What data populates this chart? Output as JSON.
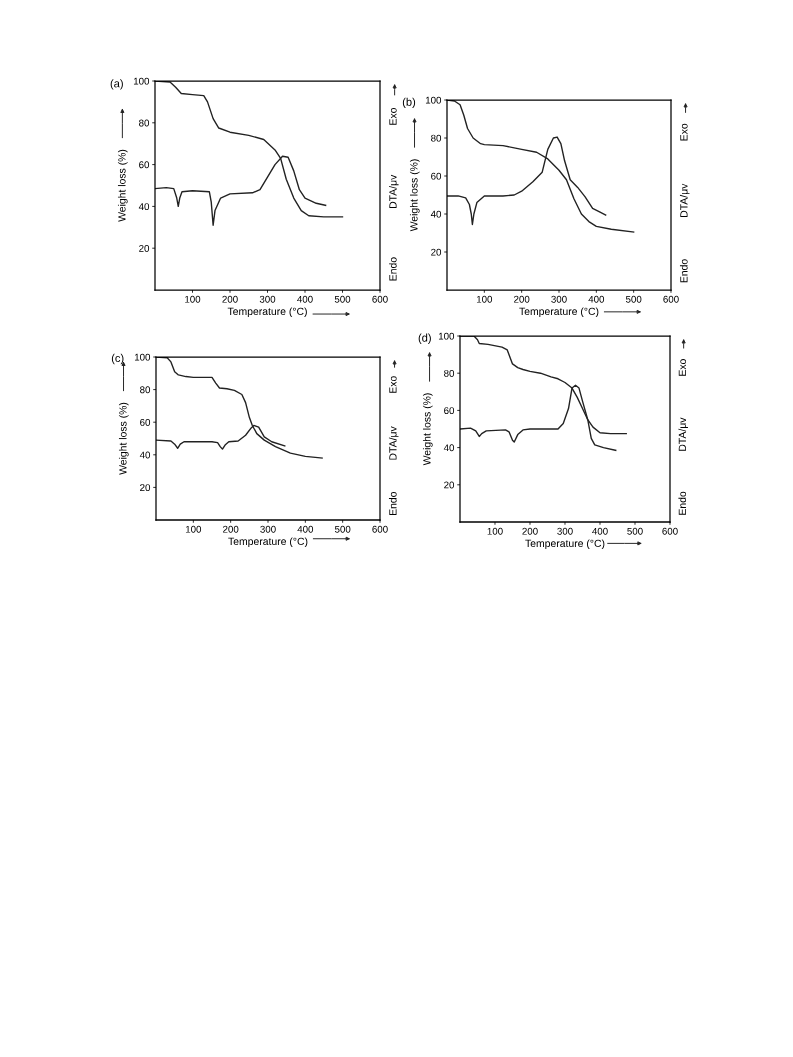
{
  "chart_data": [
    {
      "type": "line",
      "title": "(a)",
      "xlabel": "Temperature (°C)",
      "ylabel": "Weight loss (%)",
      "xlim": [
        0,
        600
      ],
      "ylim": [
        0,
        100
      ],
      "xticks": [
        100,
        200,
        300,
        400,
        500,
        600
      ],
      "yticks": [
        20,
        40,
        60,
        80,
        100
      ],
      "grid": false,
      "marker": "none",
      "line_style": "solid",
      "annotations": [
        "Exo",
        "DTA/μv",
        "Endo"
      ],
      "series": [
        {
          "color": "#222222",
          "x": [
            0,
            40,
            55,
            70,
            100,
            130,
            140,
            155,
            170,
            200,
            250,
            290,
            320,
            335,
            350,
            370,
            390,
            410,
            450,
            500
          ],
          "values": [
            100,
            99.5,
            97,
            94,
            93.5,
            93,
            90,
            82,
            77.5,
            75.5,
            74,
            72,
            67,
            63,
            53,
            44,
            38,
            35.5,
            35,
            35
          ]
        },
        {
          "color": "#222222",
          "x": [
            0,
            30,
            50,
            58,
            62,
            66,
            72,
            100,
            145,
            150,
            155,
            160,
            175,
            200,
            260,
            280,
            300,
            320,
            340,
            355,
            370,
            385,
            400,
            430,
            455
          ],
          "values": [
            48.5,
            49,
            48.5,
            44,
            40,
            44,
            47,
            47.5,
            47,
            42,
            31,
            38,
            44,
            46,
            46.5,
            48,
            54,
            60,
            64,
            63.5,
            57,
            48,
            44,
            41.5,
            40.5
          ]
        }
      ]
    },
    {
      "type": "line",
      "title": "(b)",
      "xlabel": "Temperature (°C)",
      "ylabel": "Weight loss (%)",
      "xlim": [
        0,
        600
      ],
      "ylim": [
        0,
        100
      ],
      "xticks": [
        100,
        200,
        300,
        400,
        500,
        600
      ],
      "yticks": [
        20,
        40,
        60,
        80,
        100
      ],
      "grid": false,
      "marker": "none",
      "line_style": "solid",
      "annotations": [
        "Exo",
        "DTA/μv",
        "Endo"
      ],
      "series": [
        {
          "color": "#222222",
          "x": [
            0,
            20,
            35,
            45,
            55,
            70,
            90,
            100,
            150,
            200,
            240,
            270,
            300,
            320,
            340,
            360,
            380,
            400,
            440,
            500
          ],
          "values": [
            100,
            99.5,
            97.5,
            92,
            85,
            80,
            77,
            76.5,
            76,
            74,
            72.5,
            69,
            63,
            58,
            48,
            40,
            36,
            33.5,
            32,
            30.5
          ]
        },
        {
          "color": "#222222",
          "x": [
            0,
            30,
            50,
            60,
            65,
            68,
            72,
            80,
            100,
            150,
            180,
            200,
            230,
            255,
            270,
            285,
            295,
            305,
            315,
            330,
            350,
            370,
            390,
            410,
            425
          ],
          "values": [
            49.5,
            49.5,
            48.5,
            45,
            40,
            34.5,
            40,
            46,
            49.5,
            49.5,
            50,
            52,
            57,
            62,
            74,
            80,
            80.5,
            77,
            68,
            58,
            54,
            49,
            43,
            41,
            39.5
          ]
        }
      ]
    },
    {
      "type": "line",
      "title": "(c)",
      "xlabel": "Temperature (°C)",
      "ylabel": "Weight loss (%)",
      "xlim": [
        0,
        600
      ],
      "ylim": [
        0,
        100
      ],
      "xticks": [
        100,
        200,
        300,
        400,
        500,
        600
      ],
      "yticks": [
        20,
        40,
        60,
        80,
        100
      ],
      "grid": false,
      "marker": "none",
      "line_style": "solid",
      "annotations": [
        "Exo",
        "DTA/μv",
        "Endo"
      ],
      "series": [
        {
          "color": "#222222",
          "x": [
            0,
            30,
            40,
            50,
            60,
            80,
            100,
            150,
            160,
            170,
            190,
            210,
            230,
            240,
            250,
            258,
            270,
            290,
            320,
            360,
            400,
            445
          ],
          "values": [
            100,
            99.5,
            97,
            91,
            89,
            88,
            87.5,
            87.5,
            84,
            81,
            80.5,
            79.5,
            77,
            72,
            63,
            58,
            53,
            49,
            45,
            41,
            39,
            38
          ]
        },
        {
          "color": "#222222",
          "x": [
            0,
            40,
            50,
            58,
            65,
            75,
            150,
            165,
            172,
            178,
            185,
            195,
            220,
            240,
            255,
            262,
            275,
            290,
            310,
            345
          ],
          "values": [
            49,
            48.5,
            46.5,
            44,
            46.5,
            48,
            48,
            47.5,
            45,
            43.5,
            46,
            48,
            48.5,
            52,
            56.5,
            58,
            57,
            51,
            48,
            45.5
          ]
        }
      ]
    },
    {
      "type": "line",
      "title": "(d)",
      "xlabel": "Temperature (°C)",
      "ylabel": "Weight loss (%)",
      "xlim": [
        0,
        600
      ],
      "ylim": [
        0,
        100
      ],
      "xticks": [
        100,
        200,
        300,
        400,
        500,
        600
      ],
      "yticks": [
        20,
        40,
        60,
        80,
        100
      ],
      "grid": false,
      "marker": "none",
      "line_style": "solid",
      "annotations": [
        "Exo",
        "DTA/μv",
        "Endo"
      ],
      "series": [
        {
          "color": "#222222",
          "x": [
            0,
            40,
            50,
            55,
            80,
            120,
            135,
            150,
            165,
            180,
            200,
            230,
            260,
            280,
            300,
            320,
            335,
            350,
            365,
            380,
            400,
            430,
            475
          ],
          "values": [
            100,
            100,
            98,
            96,
            95.5,
            94,
            92.5,
            85,
            83,
            82,
            81,
            80,
            78,
            77,
            75,
            72,
            67,
            61,
            55,
            51,
            48,
            47.5,
            47.5
          ]
        },
        {
          "color": "#222222",
          "x": [
            0,
            30,
            45,
            55,
            62,
            75,
            130,
            140,
            150,
            155,
            165,
            180,
            200,
            280,
            295,
            310,
            320,
            330,
            340,
            350,
            365,
            375,
            385,
            410,
            445
          ],
          "values": [
            50,
            50.5,
            49,
            46,
            47.5,
            49,
            49.5,
            48.5,
            44,
            43,
            47,
            49.5,
            50,
            50,
            53,
            61,
            72,
            73.5,
            72,
            65,
            55,
            45,
            41.5,
            40,
            38.5
          ]
        }
      ]
    }
  ]
}
